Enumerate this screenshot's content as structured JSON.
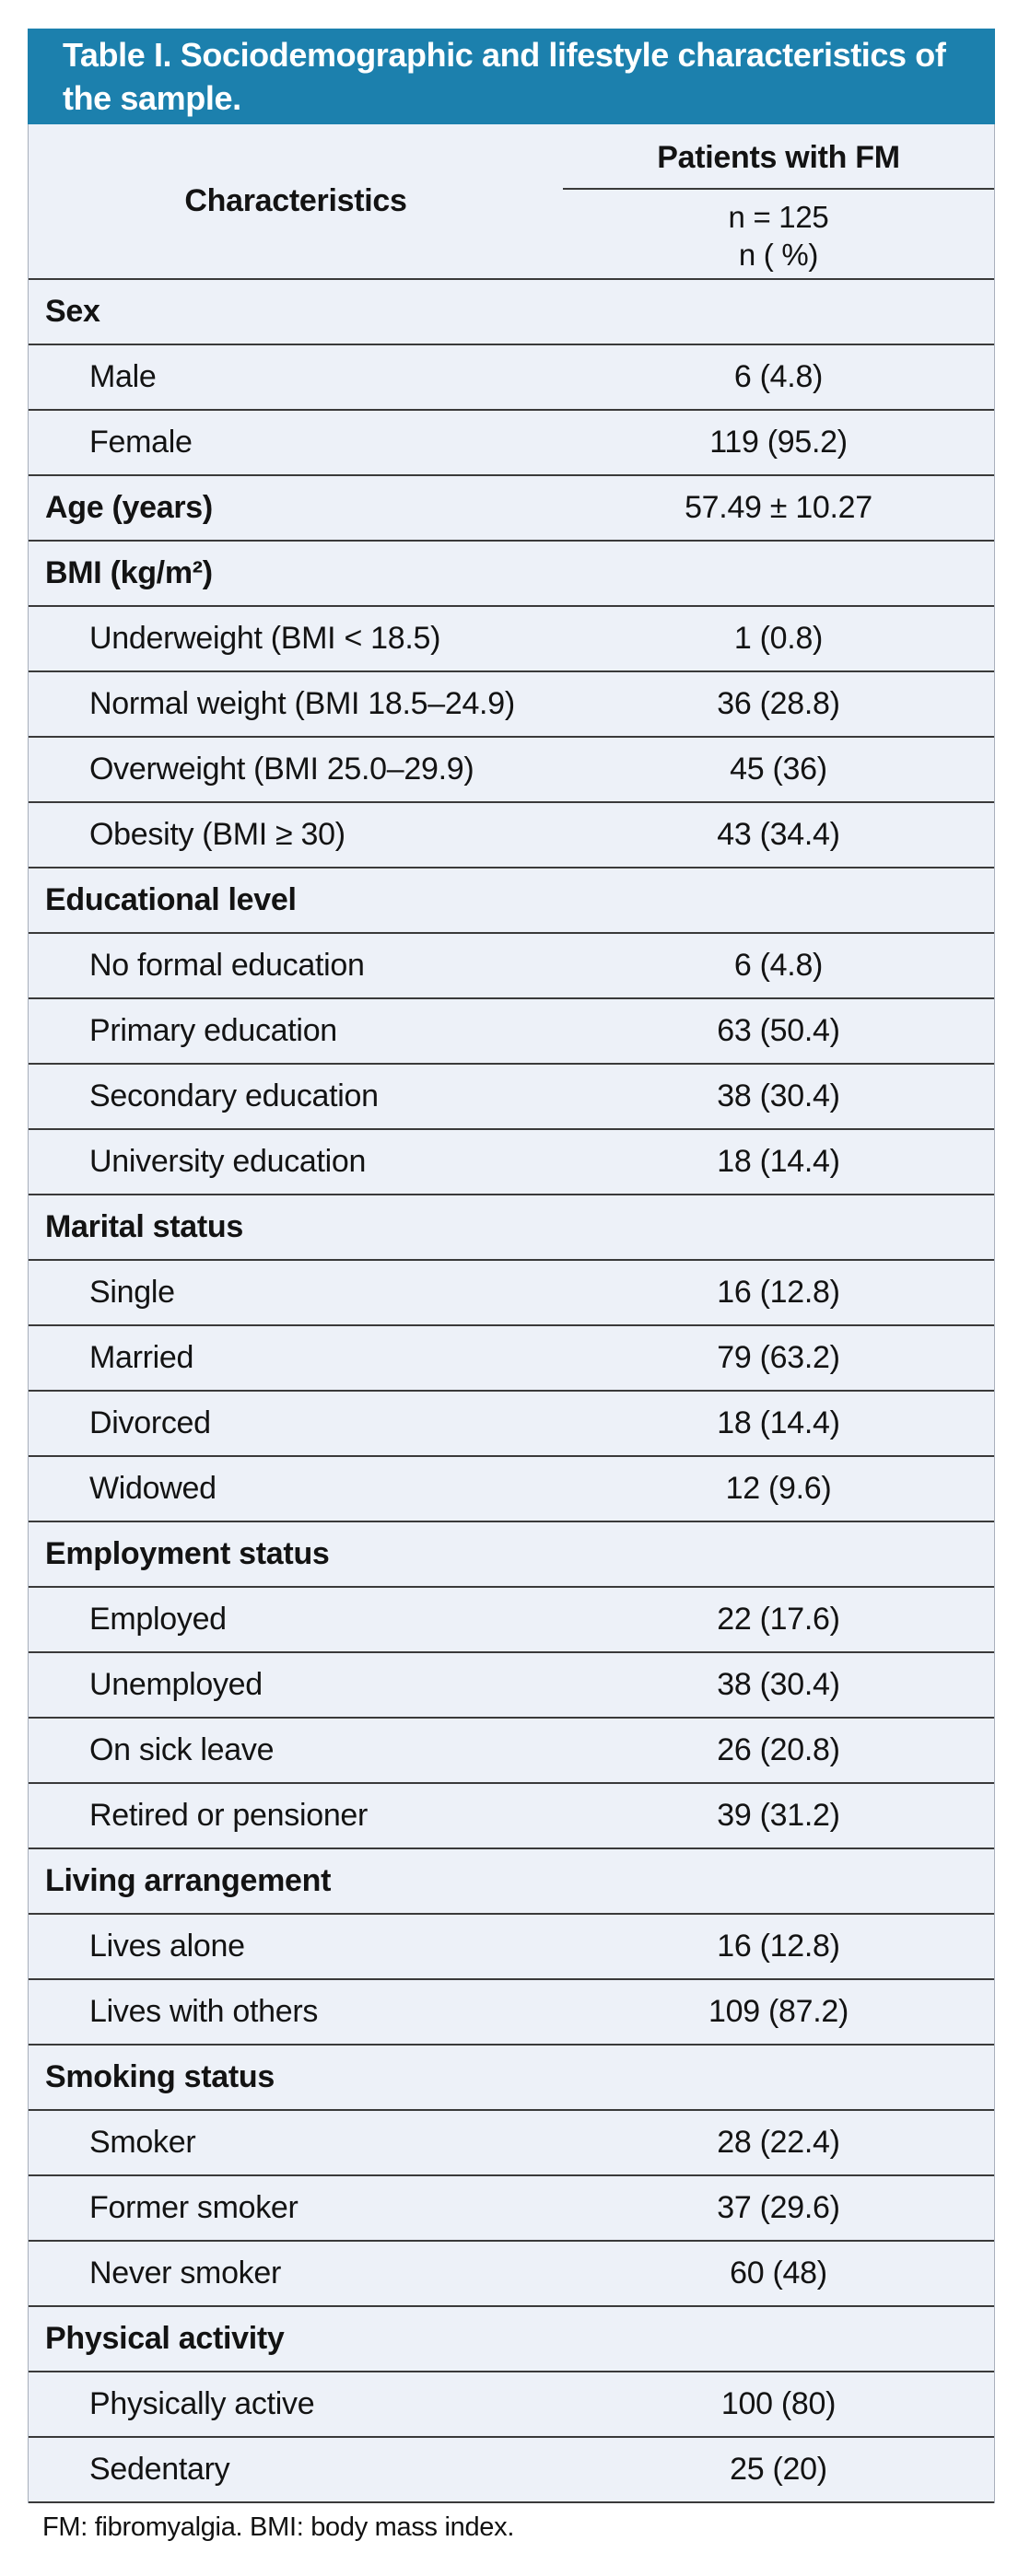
{
  "table": {
    "title": "Table I. Sociodemographic and lifestyle characteristics of the sample.",
    "col_header_left": "Characteristics",
    "col_header_right": "Patients with FM",
    "subheader_line1": "n = 125",
    "subheader_line2": "n ( %)",
    "rows": [
      {
        "type": "section",
        "label": "Sex",
        "value": ""
      },
      {
        "type": "item",
        "label": "Male",
        "value": "6 (4.8)"
      },
      {
        "type": "item",
        "label": "Female",
        "value": "119 (95.2)"
      },
      {
        "type": "section",
        "label": "Age (years)",
        "value": "57.49 ± 10.27"
      },
      {
        "type": "section",
        "label": "BMI (kg/m²)",
        "value": ""
      },
      {
        "type": "item",
        "label": "Underweight (BMI < 18.5)",
        "value": "1 (0.8)"
      },
      {
        "type": "item",
        "label": "Normal weight (BMI 18.5–24.9)",
        "value": "36 (28.8)"
      },
      {
        "type": "item",
        "label": "Overweight (BMI 25.0–29.9)",
        "value": "45 (36)"
      },
      {
        "type": "item",
        "label": "Obesity (BMI ≥ 30)",
        "value": "43 (34.4)"
      },
      {
        "type": "section",
        "label": "Educational level",
        "value": ""
      },
      {
        "type": "item",
        "label": "No formal education",
        "value": "6 (4.8)"
      },
      {
        "type": "item",
        "label": "Primary education",
        "value": "63 (50.4)"
      },
      {
        "type": "item",
        "label": "Secondary education",
        "value": "38 (30.4)"
      },
      {
        "type": "item",
        "label": "University education",
        "value": "18 (14.4)"
      },
      {
        "type": "section",
        "label": "Marital status",
        "value": ""
      },
      {
        "type": "item",
        "label": "Single",
        "value": "16 (12.8)"
      },
      {
        "type": "item",
        "label": "Married",
        "value": "79 (63.2)"
      },
      {
        "type": "item",
        "label": "Divorced",
        "value": "18 (14.4)"
      },
      {
        "type": "item",
        "label": "Widowed",
        "value": "12 (9.6)"
      },
      {
        "type": "section",
        "label": "Employment status",
        "value": ""
      },
      {
        "type": "item",
        "label": "Employed",
        "value": "22 (17.6)"
      },
      {
        "type": "item",
        "label": "Unemployed",
        "value": "38 (30.4)"
      },
      {
        "type": "item",
        "label": "On sick leave",
        "value": "26 (20.8)"
      },
      {
        "type": "item",
        "label": "Retired or pensioner",
        "value": "39 (31.2)"
      },
      {
        "type": "section",
        "label": "Living arrangement",
        "value": ""
      },
      {
        "type": "item",
        "label": "Lives alone",
        "value": "16 (12.8)"
      },
      {
        "type": "item",
        "label": "Lives with others",
        "value": "109 (87.2)"
      },
      {
        "type": "section",
        "label": "Smoking status",
        "value": ""
      },
      {
        "type": "item",
        "label": "Smoker",
        "value": "28 (22.4)"
      },
      {
        "type": "item",
        "label": "Former smoker",
        "value": "37 (29.6)"
      },
      {
        "type": "item",
        "label": "Never smoker",
        "value": "60 (48)"
      },
      {
        "type": "section",
        "label": "Physical activity",
        "value": ""
      },
      {
        "type": "item",
        "label": "Physically active",
        "value": "100 (80)"
      },
      {
        "type": "item",
        "label": "Sedentary",
        "value": "25 (20)"
      }
    ],
    "footnote": "FM: fibromyalgia. BMI: body mass index.",
    "colors": {
      "title_bg": "#1c80ad",
      "body_bg": "#edf1f8",
      "rule": "#3a3a3a"
    }
  }
}
